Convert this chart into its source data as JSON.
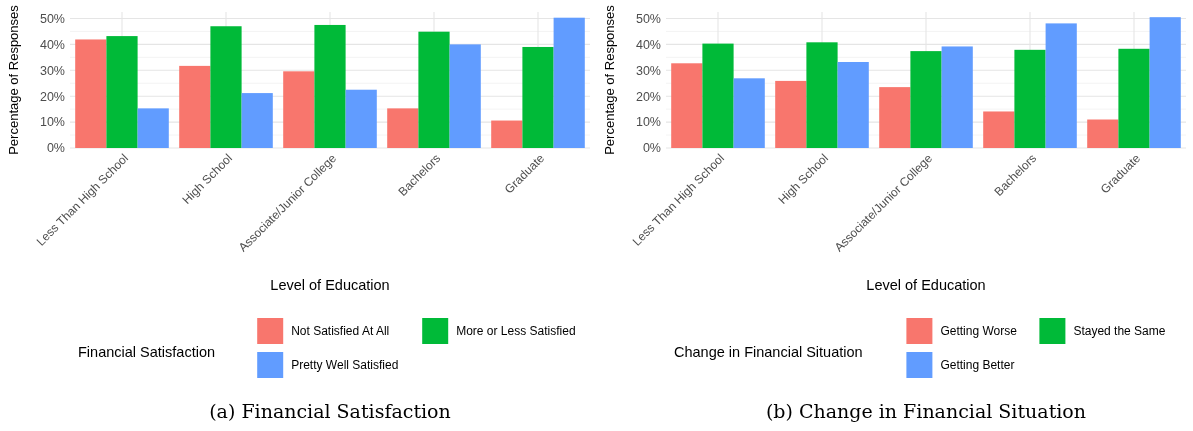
{
  "chart_data": [
    {
      "type": "bar",
      "title": "(a) Financial Satisfaction",
      "xlabel": "Level of Education",
      "ylabel": "Percentage of Responses",
      "legend_title": "Financial Satisfaction",
      "categories": [
        "Less Than High School",
        "High School",
        "Associate/Junior College",
        "Bachelors",
        "Graduate"
      ],
      "series": [
        {
          "name": "Not Satisfied At All",
          "color": "#f8766d",
          "values": [
            41.9,
            31.7,
            29.6,
            15.3,
            10.6
          ]
        },
        {
          "name": "More or Less Satisfied",
          "color": "#00ba38",
          "values": [
            43.2,
            47.0,
            47.5,
            44.9,
            39.0
          ]
        },
        {
          "name": "Pretty Well Satisfied",
          "color": "#619cff",
          "values": [
            15.3,
            21.2,
            22.5,
            40.0,
            50.3
          ]
        }
      ],
      "ylim": [
        0,
        52.5
      ],
      "yticks": [
        {
          "value": 0,
          "label": "0%"
        },
        {
          "value": 10,
          "label": "10%"
        },
        {
          "value": 20,
          "label": "20%"
        },
        {
          "value": 30,
          "label": "30%"
        },
        {
          "value": 40,
          "label": "40%"
        },
        {
          "value": 50,
          "label": "50%"
        }
      ],
      "grid": true,
      "legend": "bottom"
    },
    {
      "type": "bar",
      "title": "(b) Change in Financial Situation",
      "xlabel": "Level of Education",
      "ylabel": "Percentage of Responses",
      "legend_title": "Change in Financial Situation",
      "categories": [
        "Less Than High School",
        "High School",
        "Associate/Junior College",
        "Bachelors",
        "Graduate"
      ],
      "series": [
        {
          "name": "Getting Worse",
          "color": "#f8766d",
          "values": [
            32.7,
            25.9,
            23.5,
            14.1,
            11.0
          ]
        },
        {
          "name": "Stayed the Same",
          "color": "#00ba38",
          "values": [
            40.3,
            40.8,
            37.4,
            37.9,
            38.3
          ]
        },
        {
          "name": "Getting Better",
          "color": "#619cff",
          "values": [
            26.9,
            33.2,
            39.2,
            48.1,
            50.5
          ]
        }
      ],
      "ylim": [
        0,
        52.5
      ],
      "yticks": [
        {
          "value": 0,
          "label": "0%"
        },
        {
          "value": 10,
          "label": "10%"
        },
        {
          "value": 20,
          "label": "20%"
        },
        {
          "value": 30,
          "label": "30%"
        },
        {
          "value": 40,
          "label": "40%"
        },
        {
          "value": 50,
          "label": "50%"
        }
      ],
      "grid": true,
      "legend": "bottom"
    }
  ]
}
